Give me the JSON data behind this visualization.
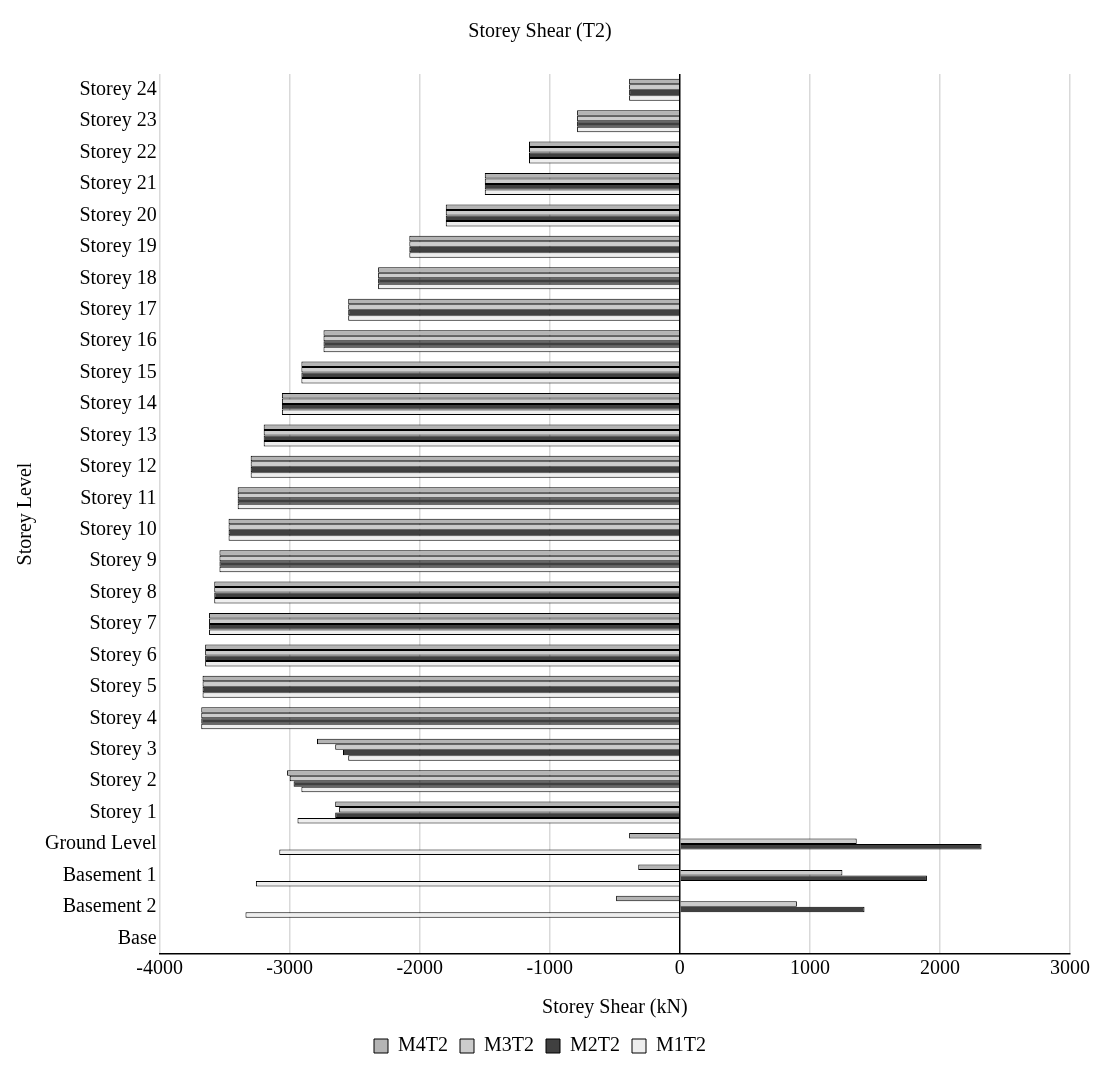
{
  "chart_data": {
    "type": "bar",
    "orientation": "horizontal",
    "title": "Storey Shear (T2)",
    "xlabel": "Storey Shear (kN)",
    "ylabel": "Storey Level",
    "categories": [
      "Storey 24",
      "Storey 23",
      "Storey 22",
      "Storey 21",
      "Storey 20",
      "Storey 19",
      "Storey 18",
      "Storey 17",
      "Storey 16",
      "Storey 15",
      "Storey 14",
      "Storey 13",
      "Storey 12",
      "Storey 11",
      "Storey 10",
      "Storey 9",
      "Storey 8",
      "Storey 7",
      "Storey 6",
      "Storey 5",
      "Storey 4",
      "Storey 3",
      "Storey 2",
      "Storey 1",
      "Ground Level",
      "Basement 1",
      "Basement 2",
      "Base"
    ],
    "series": [
      {
        "name": "M4T2",
        "color": "#b4b4b4",
        "values": [
          -390,
          -790,
          -1160,
          -1500,
          -1800,
          -2080,
          -2320,
          -2550,
          -2740,
          -2910,
          -3060,
          -3200,
          -3300,
          -3400,
          -3470,
          -3540,
          -3580,
          -3620,
          -3650,
          -3670,
          -3680,
          -2790,
          -3020,
          -2650,
          -390,
          -320,
          -490,
          null
        ]
      },
      {
        "name": "M3T2",
        "color": "#cccccc",
        "values": [
          -390,
          -790,
          -1160,
          -1500,
          -1800,
          -2080,
          -2320,
          -2550,
          -2740,
          -2910,
          -3060,
          -3200,
          -3300,
          -3400,
          -3470,
          -3540,
          -3580,
          -3620,
          -3650,
          -3670,
          -3680,
          -2650,
          -3000,
          -2620,
          1360,
          1250,
          900,
          null
        ]
      },
      {
        "name": "M2T2",
        "color": "#404040",
        "values": [
          -390,
          -790,
          -1160,
          -1500,
          -1800,
          -2080,
          -2320,
          -2550,
          -2740,
          -2910,
          -3060,
          -3200,
          -3300,
          -3400,
          -3470,
          -3540,
          -3580,
          -3620,
          -3650,
          -3670,
          -3680,
          -2590,
          -2970,
          -2650,
          2320,
          1900,
          1420,
          null
        ]
      },
      {
        "name": "M1T2",
        "color": "#eeeeee",
        "values": [
          -390,
          -790,
          -1160,
          -1500,
          -1800,
          -2080,
          -2320,
          -2550,
          -2740,
          -2910,
          -3060,
          -3200,
          -3300,
          -3400,
          -3470,
          -3540,
          -3580,
          -3620,
          -3650,
          -3670,
          -3680,
          -2550,
          -2910,
          -2940,
          -3080,
          -3260,
          -3340,
          null
        ]
      }
    ],
    "xlim": [
      -4000,
      3000
    ],
    "xticks": [
      -4000,
      -3000,
      -2000,
      -1000,
      0,
      1000,
      2000,
      3000
    ],
    "grid": "x",
    "legend": "bottom"
  }
}
